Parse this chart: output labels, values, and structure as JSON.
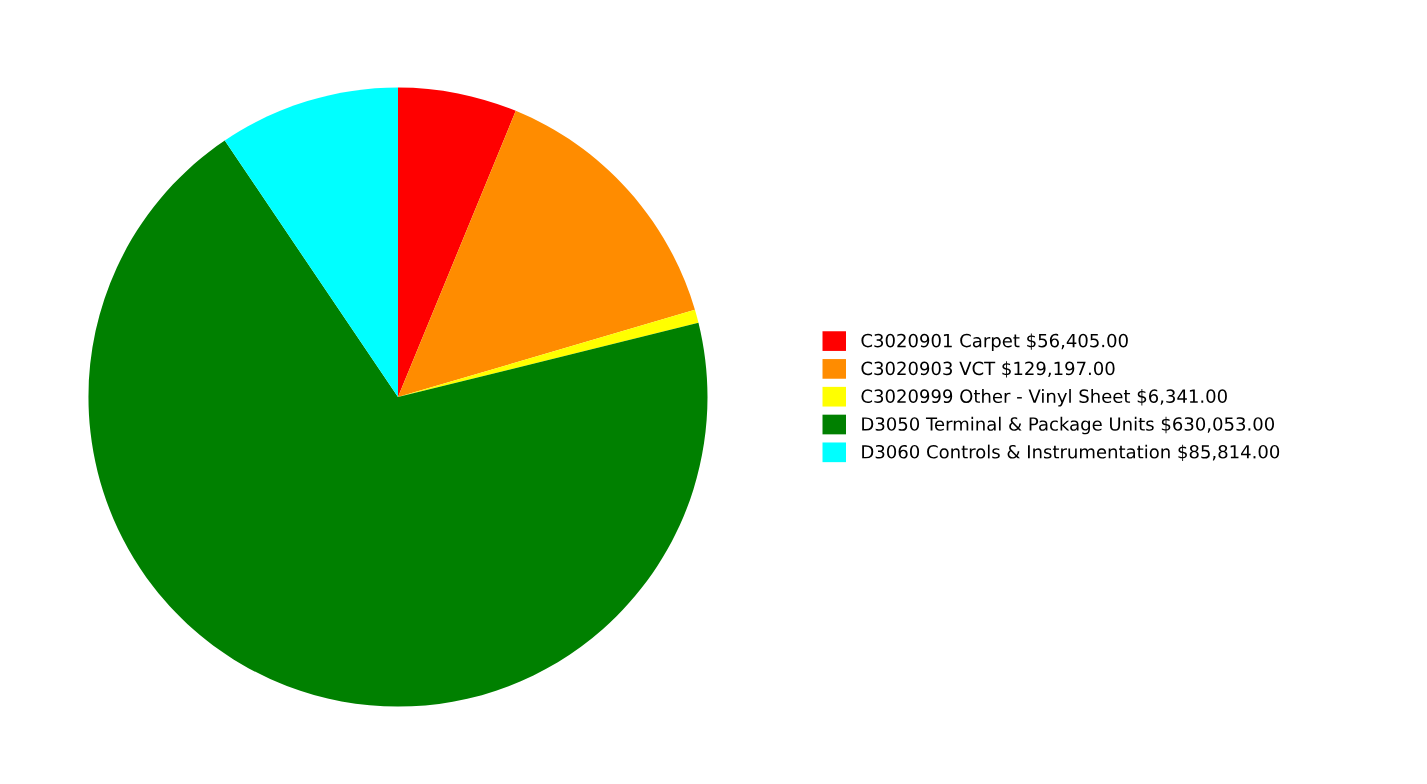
{
  "chart_data": {
    "type": "pie",
    "categories": [
      "C3020901 Carpet",
      "C3020903 VCT",
      "C3020999 Other - Vinyl Sheet",
      "D3050 Terminal & Package Units",
      "D3060 Controls & Instrumentation"
    ],
    "values": [
      56405,
      129197,
      6341,
      630053,
      85814
    ],
    "value_labels": [
      "$56,405.00",
      "$129,197.00",
      "$6,341.00",
      "$630,053.00",
      "$85,814.00"
    ],
    "colors": [
      "#ff0000",
      "#ff8c00",
      "#ffff00",
      "#008000",
      "#00ffff"
    ],
    "legend": "right"
  }
}
